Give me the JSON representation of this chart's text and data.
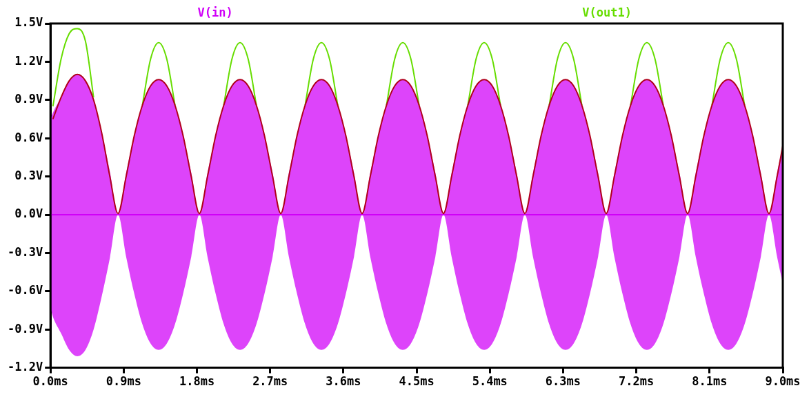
{
  "chart_data": {
    "type": "line",
    "x": [
      0,
      0.03,
      0.13,
      0.23,
      0.33,
      0.43,
      0.53,
      0.63,
      0.73,
      0.83,
      0.93,
      1.03,
      1.13,
      1.23,
      1.33,
      1.43,
      1.53,
      1.63,
      1.73,
      1.83,
      1.93,
      2.03,
      2.13,
      2.23,
      2.33,
      2.43,
      2.53,
      2.63,
      2.73,
      2.83,
      2.93,
      3.03,
      3.13,
      3.23,
      3.33,
      3.43,
      3.53,
      3.63,
      3.73,
      3.83,
      3.93,
      4.03,
      4.13,
      4.23,
      4.33,
      4.43,
      4.53,
      4.63,
      4.73,
      4.83,
      4.93,
      5.03,
      5.13,
      5.23,
      5.33,
      5.43,
      5.53,
      5.63,
      5.73,
      5.83,
      5.93,
      6.03,
      6.13,
      6.23,
      6.33,
      6.43,
      6.53,
      6.63,
      6.73,
      6.83,
      6.93,
      7.03,
      7.13,
      7.23,
      7.33,
      7.43,
      7.53,
      7.63,
      7.73,
      7.83,
      7.93,
      8.03,
      8.13,
      8.23,
      8.33,
      8.43,
      8.53,
      8.63,
      8.73,
      8.83,
      8.93,
      9.0
    ],
    "series": [
      {
        "name": "V(in)",
        "type": "line",
        "color": "#d000f8",
        "values": [
          0,
          0,
          0,
          0,
          0,
          0,
          0,
          0,
          0,
          0,
          0,
          0,
          0,
          0,
          0,
          0,
          0,
          0,
          0,
          0,
          0,
          0,
          0,
          0,
          0,
          0,
          0,
          0,
          0,
          0,
          0,
          0,
          0,
          0,
          0,
          0,
          0,
          0,
          0,
          0,
          0,
          0,
          0,
          0,
          0,
          0,
          0,
          0,
          0,
          0,
          0,
          0,
          0,
          0,
          0,
          0,
          0,
          0,
          0,
          0,
          0,
          0,
          0,
          0,
          0,
          0,
          0,
          0,
          0,
          0,
          0,
          0,
          0,
          0,
          0,
          0,
          0,
          0,
          0,
          0,
          0,
          0,
          0,
          0,
          0,
          0,
          0,
          0,
          0,
          0,
          0,
          0
        ],
        "upper": [
          0.75,
          0.8,
          0.92,
          1.05,
          1.1,
          1.05,
          0.9,
          0.64,
          0.34,
          0,
          0.33,
          0.62,
          0.86,
          1.01,
          1.06,
          1.01,
          0.86,
          0.62,
          0.33,
          0,
          0.33,
          0.62,
          0.86,
          1.01,
          1.06,
          1.01,
          0.86,
          0.62,
          0.33,
          0,
          0.33,
          0.62,
          0.86,
          1.01,
          1.06,
          1.01,
          0.86,
          0.62,
          0.33,
          0,
          0.33,
          0.62,
          0.86,
          1.01,
          1.06,
          1.01,
          0.86,
          0.62,
          0.33,
          0,
          0.33,
          0.62,
          0.86,
          1.01,
          1.06,
          1.01,
          0.86,
          0.62,
          0.33,
          0,
          0.33,
          0.62,
          0.86,
          1.01,
          1.06,
          1.01,
          0.86,
          0.62,
          0.33,
          0,
          0.33,
          0.62,
          0.86,
          1.01,
          1.06,
          1.01,
          0.86,
          0.62,
          0.33,
          0,
          0.33,
          0.62,
          0.86,
          1.01,
          1.06,
          1.01,
          0.86,
          0.62,
          0.33,
          0,
          0.33,
          0.54
        ],
        "lower": [
          -0.73,
          -0.8,
          -0.93,
          -1.06,
          -1.11,
          -1.06,
          -0.9,
          -0.64,
          -0.34,
          0,
          -0.33,
          -0.62,
          -0.86,
          -1.01,
          -1.06,
          -1.01,
          -0.86,
          -0.62,
          -0.33,
          0,
          -0.33,
          -0.62,
          -0.86,
          -1.01,
          -1.06,
          -1.01,
          -0.86,
          -0.62,
          -0.33,
          0,
          -0.33,
          -0.62,
          -0.86,
          -1.01,
          -1.06,
          -1.01,
          -0.86,
          -0.62,
          -0.33,
          0,
          -0.33,
          -0.62,
          -0.86,
          -1.01,
          -1.06,
          -1.01,
          -0.86,
          -0.62,
          -0.33,
          0,
          -0.33,
          -0.62,
          -0.86,
          -1.01,
          -1.06,
          -1.01,
          -0.86,
          -0.62,
          -0.33,
          0,
          -0.33,
          -0.62,
          -0.86,
          -1.01,
          -1.06,
          -1.01,
          -0.86,
          -0.62,
          -0.33,
          0,
          -0.33,
          -0.62,
          -0.86,
          -1.01,
          -1.06,
          -1.01,
          -0.86,
          -0.62,
          -0.33,
          0,
          -0.33,
          -0.62,
          -0.86,
          -1.01,
          -1.06,
          -1.01,
          -0.86,
          -0.62,
          -0.33,
          0,
          -0.33,
          -0.54
        ]
      },
      {
        "name": "V(out1)",
        "type": "line",
        "color": "#66dd00",
        "values": [
          null,
          0.85,
          1.22,
          1.42,
          1.46,
          1.36,
          0.92,
          null,
          null,
          null,
          null,
          null,
          0.86,
          1.22,
          1.35,
          1.22,
          0.86,
          null,
          null,
          null,
          null,
          null,
          0.86,
          1.22,
          1.35,
          1.22,
          0.86,
          null,
          null,
          null,
          null,
          null,
          0.86,
          1.22,
          1.35,
          1.22,
          0.86,
          null,
          null,
          null,
          null,
          null,
          0.86,
          1.22,
          1.35,
          1.22,
          0.86,
          null,
          null,
          null,
          null,
          null,
          0.86,
          1.22,
          1.35,
          1.22,
          0.86,
          null,
          null,
          null,
          null,
          null,
          0.86,
          1.22,
          1.35,
          1.22,
          0.86,
          null,
          null,
          null,
          null,
          null,
          0.86,
          1.22,
          1.35,
          1.22,
          0.86,
          null,
          null,
          null,
          null,
          null,
          0.86,
          1.22,
          1.35,
          1.22,
          0.86,
          null,
          null,
          null,
          null,
          null
        ]
      },
      {
        "type": "line",
        "color": "#b0001c",
        "values": [
          null,
          0.75,
          0.92,
          1.05,
          1.1,
          1.05,
          0.9,
          0.64,
          0.3,
          0.01,
          0.3,
          0.62,
          0.86,
          1.01,
          1.06,
          1.01,
          0.86,
          0.62,
          0.3,
          0.01,
          0.3,
          0.62,
          0.86,
          1.01,
          1.06,
          1.01,
          0.86,
          0.62,
          0.3,
          0.01,
          0.3,
          0.62,
          0.86,
          1.01,
          1.06,
          1.01,
          0.86,
          0.62,
          0.3,
          0.01,
          0.3,
          0.62,
          0.86,
          1.01,
          1.06,
          1.01,
          0.86,
          0.62,
          0.3,
          0.01,
          0.3,
          0.62,
          0.86,
          1.01,
          1.06,
          1.01,
          0.86,
          0.62,
          0.3,
          0.01,
          0.3,
          0.62,
          0.86,
          1.01,
          1.06,
          1.01,
          0.86,
          0.62,
          0.3,
          0.01,
          0.3,
          0.62,
          0.86,
          1.01,
          1.06,
          1.01,
          0.86,
          0.62,
          0.3,
          0.01,
          0.3,
          0.62,
          0.86,
          1.01,
          1.06,
          1.01,
          0.86,
          0.62,
          0.3,
          0.01,
          0.3,
          0.54
        ]
      }
    ],
    "xlim": [
      0,
      9
    ],
    "xticks": [
      {
        "value": 0,
        "label": "0.0ms"
      },
      {
        "value": 0.9,
        "label": "0.9ms"
      },
      {
        "value": 1.8,
        "label": "1.8ms"
      },
      {
        "value": 2.7,
        "label": "2.7ms"
      },
      {
        "value": 3.6,
        "label": "3.6ms"
      },
      {
        "value": 4.5,
        "label": "4.5ms"
      },
      {
        "value": 5.4,
        "label": "5.4ms"
      },
      {
        "value": 6.3,
        "label": "6.3ms"
      },
      {
        "value": 7.2,
        "label": "7.2ms"
      },
      {
        "value": 8.1,
        "label": "8.1ms"
      },
      {
        "value": 9,
        "label": "9.0ms"
      }
    ],
    "ylim": [
      -1.2,
      1.5
    ],
    "yticks": [
      {
        "value": -1.2,
        "label": "-1.2V"
      },
      {
        "value": -0.9,
        "label": "-0.9V"
      },
      {
        "value": -0.6,
        "label": "-0.6V"
      },
      {
        "value": -0.3,
        "label": "-0.3V"
      },
      {
        "value": 0,
        "label": "0.0V"
      },
      {
        "value": 0.3,
        "label": "0.3V"
      },
      {
        "value": 0.6,
        "label": "0.6V"
      },
      {
        "value": 0.9,
        "label": "0.9V"
      },
      {
        "value": 1.2,
        "label": "1.2V"
      },
      {
        "value": 1.5,
        "label": "1.5V"
      }
    ],
    "grid": false,
    "legend": "top",
    "marker": "none"
  }
}
